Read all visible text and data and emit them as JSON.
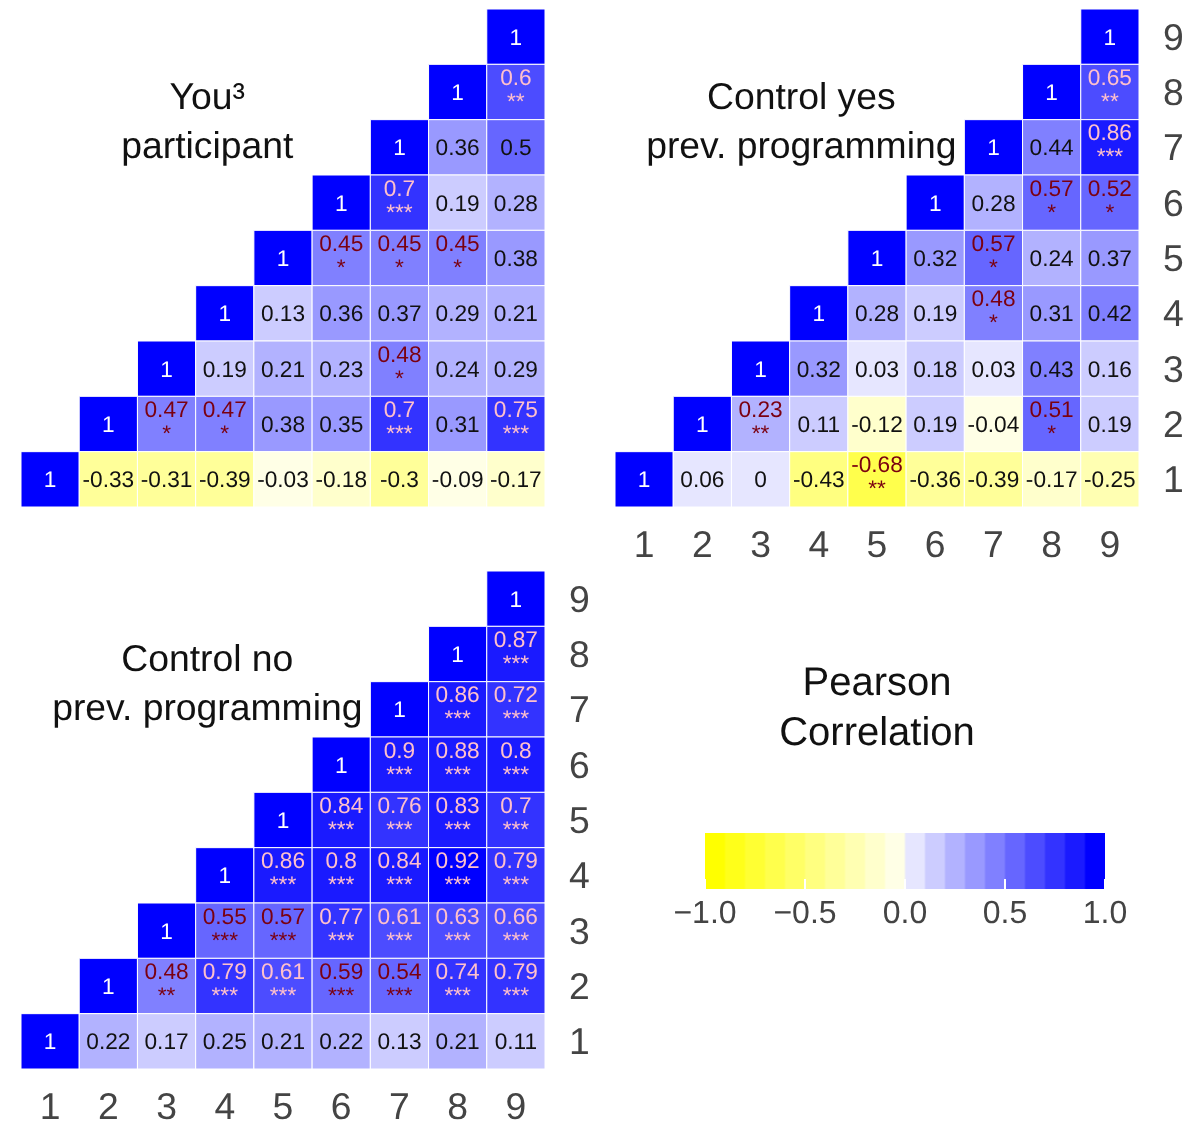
{
  "chart_data": [
    {
      "type": "heatmap",
      "title": "You³\nparticipant",
      "categories": [
        "1",
        "2",
        "3",
        "4",
        "5",
        "6",
        "7",
        "8",
        "9"
      ],
      "y_categories": [
        "9",
        "8",
        "7",
        "6",
        "5",
        "4",
        "3",
        "2",
        "1"
      ],
      "tick_labels": false,
      "cells": [
        [
          null,
          null,
          null,
          null,
          null,
          null,
          null,
          null,
          1
        ],
        [
          null,
          null,
          null,
          null,
          null,
          null,
          null,
          1,
          0.6
        ],
        [
          null,
          null,
          null,
          null,
          null,
          null,
          1,
          0.36,
          0.5
        ],
        [
          null,
          null,
          null,
          null,
          null,
          1,
          0.7,
          0.19,
          0.28
        ],
        [
          null,
          null,
          null,
          null,
          1,
          0.45,
          0.45,
          0.45,
          0.38
        ],
        [
          null,
          null,
          null,
          1,
          0.13,
          0.36,
          0.37,
          0.29,
          0.21
        ],
        [
          null,
          null,
          1,
          0.19,
          0.21,
          0.23,
          0.48,
          0.24,
          0.29
        ],
        [
          null,
          1,
          0.47,
          0.47,
          0.38,
          0.35,
          0.7,
          0.31,
          0.75
        ],
        [
          1,
          -0.33,
          -0.31,
          -0.39,
          -0.03,
          -0.18,
          -0.3,
          -0.09,
          -0.17
        ]
      ],
      "cell_labels": [
        [
          null,
          null,
          null,
          null,
          null,
          null,
          null,
          null,
          "1"
        ],
        [
          null,
          null,
          null,
          null,
          null,
          null,
          null,
          "1",
          "0.6\n**"
        ],
        [
          null,
          null,
          null,
          null,
          null,
          null,
          "1",
          "0.36",
          "0.5"
        ],
        [
          null,
          null,
          null,
          null,
          null,
          "1",
          "0.7\n***",
          "0.19",
          "0.28"
        ],
        [
          null,
          null,
          null,
          null,
          "1",
          "0.45\n*",
          "0.45\n*",
          "0.45\n*",
          "0.38"
        ],
        [
          null,
          null,
          null,
          "1",
          "0.13",
          "0.36",
          "0.37",
          "0.29",
          "0.21"
        ],
        [
          null,
          null,
          "1",
          "0.19",
          "0.21",
          "0.23",
          "0.48\n*",
          "0.24",
          "0.29"
        ],
        [
          null,
          "1",
          "0.47\n*",
          "0.47\n*",
          "0.38",
          "0.35",
          "0.7\n***",
          "0.31",
          "0.75\n***"
        ],
        [
          "1",
          "-0.33",
          "-0.31",
          "-0.39",
          "-0.03",
          "-0.18",
          "-0.3",
          "-0.09",
          "-0.17"
        ]
      ]
    },
    {
      "type": "heatmap",
      "title": "Control yes\nprev. programming",
      "categories": [
        "1",
        "2",
        "3",
        "4",
        "5",
        "6",
        "7",
        "8",
        "9"
      ],
      "y_categories": [
        "9",
        "8",
        "7",
        "6",
        "5",
        "4",
        "3",
        "2",
        "1"
      ],
      "cells": [
        [
          null,
          null,
          null,
          null,
          null,
          null,
          null,
          null,
          1
        ],
        [
          null,
          null,
          null,
          null,
          null,
          null,
          null,
          1,
          0.65
        ],
        [
          null,
          null,
          null,
          null,
          null,
          null,
          1,
          0.44,
          0.86
        ],
        [
          null,
          null,
          null,
          null,
          null,
          1,
          0.28,
          0.57,
          0.52
        ],
        [
          null,
          null,
          null,
          null,
          1,
          0.32,
          0.57,
          0.24,
          0.37
        ],
        [
          null,
          null,
          null,
          1,
          0.28,
          0.19,
          0.48,
          0.31,
          0.42
        ],
        [
          null,
          null,
          1,
          0.32,
          0.03,
          0.18,
          0.03,
          0.43,
          0.16
        ],
        [
          null,
          1,
          0.23,
          0.11,
          -0.12,
          0.19,
          -0.04,
          0.51,
          0.19
        ],
        [
          1,
          0.06,
          0,
          -0.43,
          -0.68,
          -0.36,
          -0.39,
          -0.17,
          -0.25
        ]
      ],
      "cell_labels": [
        [
          null,
          null,
          null,
          null,
          null,
          null,
          null,
          null,
          "1"
        ],
        [
          null,
          null,
          null,
          null,
          null,
          null,
          null,
          "1",
          "0.65\n**"
        ],
        [
          null,
          null,
          null,
          null,
          null,
          null,
          "1",
          "0.44",
          "0.86\n***"
        ],
        [
          null,
          null,
          null,
          null,
          null,
          "1",
          "0.28",
          "0.57\n*",
          "0.52\n*"
        ],
        [
          null,
          null,
          null,
          null,
          "1",
          "0.32",
          "0.57\n*",
          "0.24",
          "0.37"
        ],
        [
          null,
          null,
          null,
          "1",
          "0.28",
          "0.19",
          "0.48\n*",
          "0.31",
          "0.42"
        ],
        [
          null,
          null,
          "1",
          "0.32",
          "0.03",
          "0.18",
          "0.03",
          "0.43",
          "0.16"
        ],
        [
          null,
          "1",
          "0.23\n**",
          "0.11",
          "-0.12",
          "0.19",
          "-0.04",
          "0.51\n*",
          "0.19"
        ],
        [
          "1",
          "0.06",
          "0",
          "-0.43",
          "-0.68\n**",
          "-0.36",
          "-0.39",
          "-0.17",
          "-0.25"
        ]
      ]
    },
    {
      "type": "heatmap",
      "title": "Control no\nprev. programming",
      "categories": [
        "1",
        "2",
        "3",
        "4",
        "5",
        "6",
        "7",
        "8",
        "9"
      ],
      "y_categories": [
        "9",
        "8",
        "7",
        "6",
        "5",
        "4",
        "3",
        "2",
        "1"
      ],
      "clim": [
        -1.0,
        1.0
      ],
      "clabel": "Pearson\nCorrelation",
      "cticks": [
        {
          "value": -1.0,
          "label": "−1.0"
        },
        {
          "value": -0.5,
          "label": "−0.5"
        },
        {
          "value": 0.0,
          "label": "0.0"
        },
        {
          "value": 0.5,
          "label": "0.5"
        },
        {
          "value": 1.0,
          "label": "1.0"
        }
      ],
      "data_labels": true,
      "cells": [
        [
          null,
          null,
          null,
          null,
          null,
          null,
          null,
          null,
          1
        ],
        [
          null,
          null,
          null,
          null,
          null,
          null,
          null,
          1,
          0.87
        ],
        [
          null,
          null,
          null,
          null,
          null,
          null,
          1,
          0.86,
          0.72
        ],
        [
          null,
          null,
          null,
          null,
          null,
          1,
          0.9,
          0.88,
          0.8
        ],
        [
          null,
          null,
          null,
          null,
          1,
          0.84,
          0.76,
          0.83,
          0.7
        ],
        [
          null,
          null,
          null,
          1,
          0.86,
          0.8,
          0.84,
          0.92,
          0.79
        ],
        [
          null,
          null,
          1,
          0.55,
          0.57,
          0.77,
          0.61,
          0.63,
          0.66
        ],
        [
          null,
          1,
          0.48,
          0.79,
          0.61,
          0.59,
          0.54,
          0.74,
          0.79
        ],
        [
          1,
          0.22,
          0.17,
          0.25,
          0.21,
          0.22,
          0.13,
          0.21,
          0.11
        ]
      ],
      "cell_labels": [
        [
          null,
          null,
          null,
          null,
          null,
          null,
          null,
          null,
          "1"
        ],
        [
          null,
          null,
          null,
          null,
          null,
          null,
          null,
          "1",
          "0.87\n***"
        ],
        [
          null,
          null,
          null,
          null,
          null,
          null,
          "1",
          "0.86\n***",
          "0.72\n***"
        ],
        [
          null,
          null,
          null,
          null,
          null,
          "1",
          "0.9\n***",
          "0.88\n***",
          "0.8\n***"
        ],
        [
          null,
          null,
          null,
          null,
          "1",
          "0.84\n***",
          "0.76\n***",
          "0.83\n***",
          "0.7\n***"
        ],
        [
          null,
          null,
          null,
          "1",
          "0.86\n***",
          "0.8\n***",
          "0.84\n***",
          "0.92\n***",
          "0.79\n***"
        ],
        [
          null,
          null,
          "1",
          "0.55\n***",
          "0.57\n***",
          "0.77\n***",
          "0.61\n***",
          "0.63\n***",
          "0.66\n***"
        ],
        [
          null,
          null,
          "0.48\n**",
          "0.79\n***",
          "0.61\n***",
          "0.59\n***",
          "0.54\n***",
          "0.74\n***",
          "0.79\n***"
        ],
        [
          null,
          "0.22",
          "0.17",
          "0.25",
          "0.21",
          "0.22",
          "0.13",
          "0.21",
          "0.11"
        ]
      ]
    }
  ]
}
